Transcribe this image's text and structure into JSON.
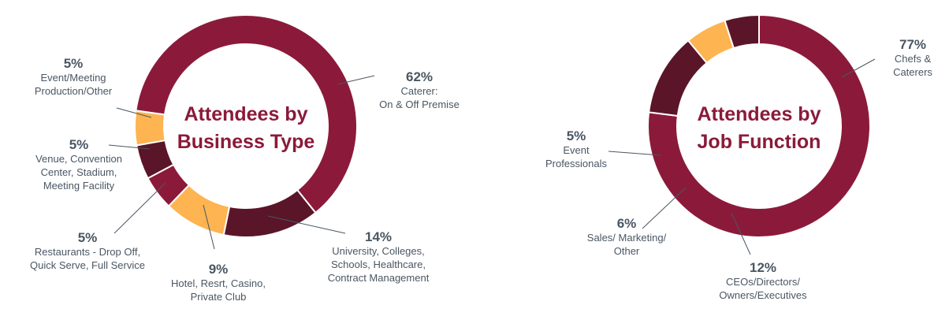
{
  "chart_data": [
    {
      "type": "donut",
      "title_lines": [
        "Attendees by",
        "Business Type"
      ],
      "title_color": "#8b1a3a",
      "slices": [
        {
          "percent": 62,
          "percent_label": "62%",
          "label_lines": [
            "Caterer:",
            "On & Off Premise"
          ],
          "color": "#8b1a3a"
        },
        {
          "percent": 14,
          "percent_label": "14%",
          "label_lines": [
            "University, Colleges,",
            "Schools, Healthcare,",
            "Contract Management"
          ],
          "color": "#5a1528"
        },
        {
          "percent": 9,
          "percent_label": "9%",
          "label_lines": [
            "Hotel, Resrt, Casino,",
            "Private Club"
          ],
          "color": "#fdb451"
        },
        {
          "percent": 5,
          "percent_label": "5%",
          "label_lines": [
            "Restaurants - Drop Off,",
            "Quick Serve, Full Service"
          ],
          "color": "#8b1a3a"
        },
        {
          "percent": 5,
          "percent_label": "5%",
          "label_lines": [
            "Venue, Convention",
            "Center, Stadium,",
            "Meeting Facility"
          ],
          "color": "#5a1528"
        },
        {
          "percent": 5,
          "percent_label": "5%",
          "label_lines": [
            "Event/Meeting",
            "Production/Other"
          ],
          "color": "#fdb451"
        }
      ]
    },
    {
      "type": "donut",
      "title_lines": [
        "Attendees by",
        "Job Function"
      ],
      "title_color": "#8b1a3a",
      "slices": [
        {
          "percent": 77,
          "percent_label": "77%",
          "label_lines": [
            "Chefs &",
            "Caterers"
          ],
          "color": "#8b1a3a"
        },
        {
          "percent": 12,
          "percent_label": "12%",
          "label_lines": [
            "CEOs/Directors/",
            "Owners/Executives"
          ],
          "color": "#5a1528"
        },
        {
          "percent": 6,
          "percent_label": "6%",
          "label_lines": [
            "Sales/ Marketing/",
            "Other"
          ],
          "color": "#fdb451"
        },
        {
          "percent": 5,
          "percent_label": "5%",
          "label_lines": [
            "Event",
            "Professionals"
          ],
          "color": "#5a1528"
        }
      ]
    }
  ]
}
